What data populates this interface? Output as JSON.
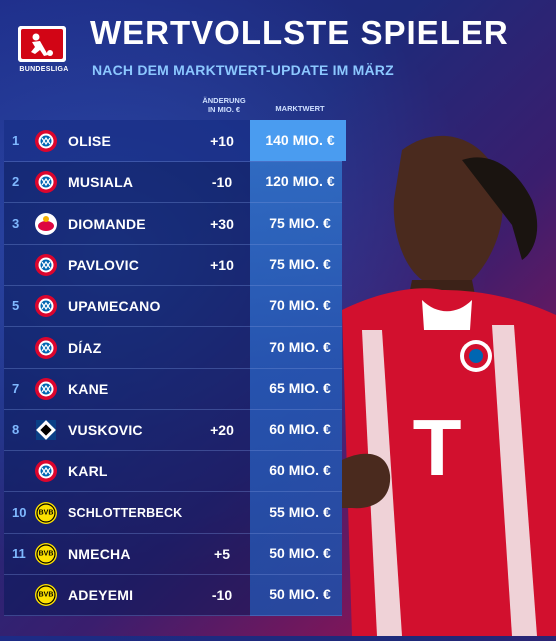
{
  "header": {
    "logo_text": "BUNDESLIGA",
    "title": "WERTVOLLSTE SPIELER",
    "subtitle": "NACH DEM MARKTWERT-UPDATE IM MÄRZ"
  },
  "columns": {
    "change_line1": "ÄNDERUNG",
    "change_line2": "IN MIO. €",
    "value": "MARKTWERT"
  },
  "rows": [
    {
      "rank": "1",
      "club": "Bayern München",
      "name": "OLISE",
      "change": "+10",
      "value": "140 MIO. €"
    },
    {
      "rank": "2",
      "club": "Bayern München",
      "name": "MUSIALA",
      "change": "-10",
      "value": "120 MIO. €"
    },
    {
      "rank": "3",
      "club": "RB Leipzig",
      "name": "DIOMANDE",
      "change": "+30",
      "value": "75 MIO. €"
    },
    {
      "rank": "",
      "club": "Bayern München",
      "name": "PAVLOVIC",
      "change": "+10",
      "value": "75 MIO. €"
    },
    {
      "rank": "5",
      "club": "Bayern München",
      "name": "UPAMECANO",
      "change": "",
      "value": "70 MIO. €"
    },
    {
      "rank": "",
      "club": "Bayern München",
      "name": "DÍAZ",
      "change": "",
      "value": "70 MIO. €"
    },
    {
      "rank": "7",
      "club": "Bayern München",
      "name": "KANE",
      "change": "",
      "value": "65 MIO. €"
    },
    {
      "rank": "8",
      "club": "Hamburger SV",
      "name": "VUSKOVIC",
      "change": "+20",
      "value": "60 MIO. €"
    },
    {
      "rank": "",
      "club": "Bayern München",
      "name": "KARL",
      "change": "",
      "value": "60 MIO. €"
    },
    {
      "rank": "10",
      "club": "Borussia Dortmund",
      "name": "SCHLOTTERBECK",
      "change": "",
      "value": "55 MIO. €"
    },
    {
      "rank": "11",
      "club": "Borussia Dortmund",
      "name": "NMECHA",
      "change": "+5",
      "value": "50 MIO. €"
    },
    {
      "rank": "",
      "club": "Borussia Dortmund",
      "name": "ADEYEMI",
      "change": "-10",
      "value": "50 MIO. €"
    }
  ],
  "colors": {
    "bayern": "#dc052d",
    "leipzig": "#dd0741",
    "hsv": "#0a3f86",
    "bvb": "#fde100",
    "value_col": "#4a9cf0"
  }
}
